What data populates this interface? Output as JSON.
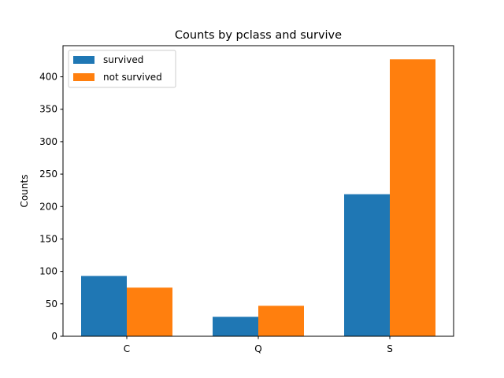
{
  "chart_data": {
    "type": "bar",
    "title": "Counts by pclass and survive",
    "xlabel": "",
    "ylabel": "Counts",
    "categories": [
      "C",
      "Q",
      "S"
    ],
    "series": [
      {
        "name": "survived",
        "color": "#1f77b4",
        "values": [
          93,
          30,
          219
        ]
      },
      {
        "name": "not survived",
        "color": "#ff7f0e",
        "values": [
          75,
          47,
          427
        ]
      }
    ],
    "ylim": [
      0,
      448
    ],
    "yticks": [
      "0",
      "50",
      "100",
      "150",
      "200",
      "250",
      "300",
      "350",
      "400"
    ],
    "legend_position": "top-left",
    "grid": false
  }
}
